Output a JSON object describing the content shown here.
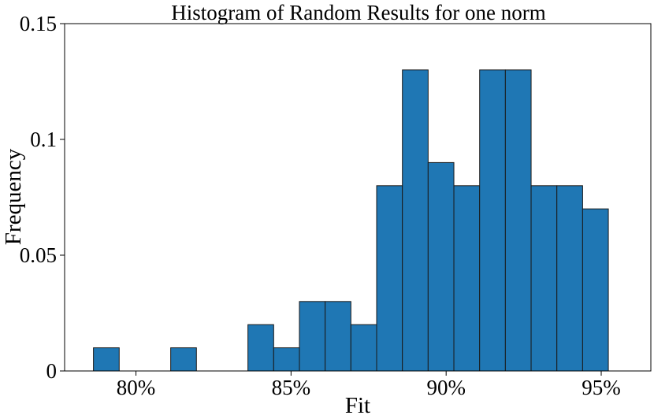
{
  "chart_data": {
    "type": "bar",
    "title": "Histogram of Random Results for one norm",
    "xlabel": "Fit",
    "ylabel": "Frequency",
    "xlim": [
      77.7,
      96.6
    ],
    "ylim": [
      0,
      0.15
    ],
    "x_ticks": [
      {
        "value": 80,
        "label": "80%"
      },
      {
        "value": 85,
        "label": "85%"
      },
      {
        "value": 90,
        "label": "90%"
      },
      {
        "value": 95,
        "label": "95%"
      }
    ],
    "y_ticks": [
      {
        "value": 0,
        "label": "0"
      },
      {
        "value": 0.05,
        "label": "0.05"
      },
      {
        "value": 0.1,
        "label": "0.1"
      },
      {
        "value": 0.15,
        "label": "0.15"
      }
    ],
    "bin_edges": [
      78.63,
      79.46,
      80.29,
      81.12,
      81.95,
      82.78,
      83.61,
      84.44,
      85.27,
      86.1,
      86.93,
      87.76,
      88.59,
      89.42,
      90.25,
      91.08,
      91.91,
      92.74,
      93.57,
      94.4,
      95.23
    ],
    "values": [
      0.01,
      0,
      0,
      0.01,
      0,
      0,
      0.02,
      0.01,
      0.03,
      0.03,
      0.02,
      0.08,
      0.13,
      0.09,
      0.08,
      0.13,
      0.13,
      0.08,
      0.08,
      0.07
    ],
    "bar_color": "#1f77b4",
    "edge_color": "#1a1a1a",
    "grid": false,
    "legend": "none"
  }
}
